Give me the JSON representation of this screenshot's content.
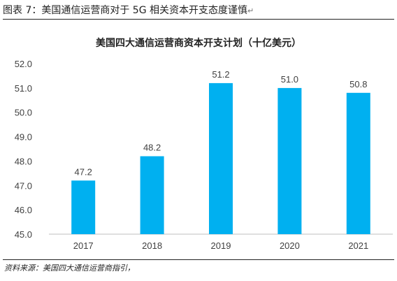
{
  "caption": {
    "text": "图表 7：美国通信运营商对于 5G 相关资本开支态度谨慎",
    "mark": "↵"
  },
  "chart_data": {
    "type": "bar",
    "title": "美国四大通信运营商资本开支计划（十亿美元）",
    "categories": [
      "2017",
      "2018",
      "2019",
      "2020",
      "2021"
    ],
    "values": [
      47.2,
      48.2,
      51.2,
      51.0,
      50.8
    ],
    "value_labels": [
      "47.2",
      "48.2",
      "51.2",
      "51.0",
      "50.8"
    ],
    "ylim": [
      45.0,
      52.0
    ],
    "yticks": [
      "45.0",
      "46.0",
      "47.0",
      "48.0",
      "49.0",
      "50.0",
      "51.0",
      "52.0"
    ],
    "bar_color": "#00b0f0",
    "grid": false,
    "legend": "none"
  },
  "source": {
    "text": "资料来源：美国四大通信运营商指引，"
  }
}
